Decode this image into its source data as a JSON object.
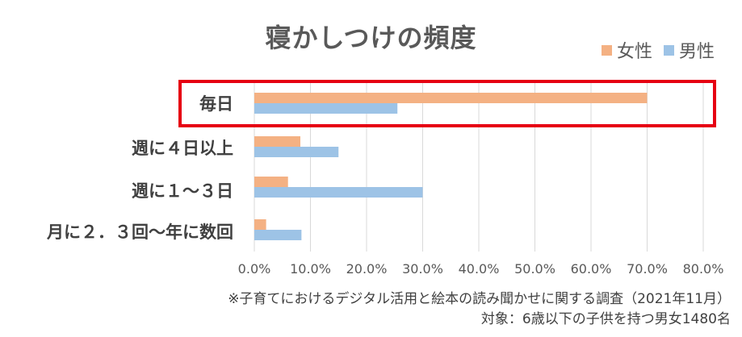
{
  "chart_data": {
    "type": "bar",
    "orientation": "horizontal",
    "title": "寝かしつけの頻度",
    "categories": [
      "毎日",
      "週に４日以上",
      "週に１～３日",
      "月に２．３回～年に数回"
    ],
    "series": [
      {
        "name": "女性",
        "color": "#f4b183",
        "values": [
          70.0,
          8.2,
          6.0,
          2.1
        ]
      },
      {
        "name": "男性",
        "color": "#9dc3e6",
        "values": [
          25.5,
          15.0,
          30.0,
          8.4
        ]
      }
    ],
    "xlim": [
      0,
      80
    ],
    "xticks": [
      "0.0%",
      "10.0%",
      "20.0%",
      "30.0%",
      "40.0%",
      "50.0%",
      "60.0%",
      "70.0%",
      "80.0%"
    ],
    "grid": true,
    "legend": "top-right",
    "highlighted_category": "毎日"
  },
  "notes": {
    "survey": "※子育てにおけるデジタル活用と絵本の読み聞かせに関する調査（2021年11月）",
    "subjects": "対象：6歳以下の子供を持つ男女1480名"
  }
}
